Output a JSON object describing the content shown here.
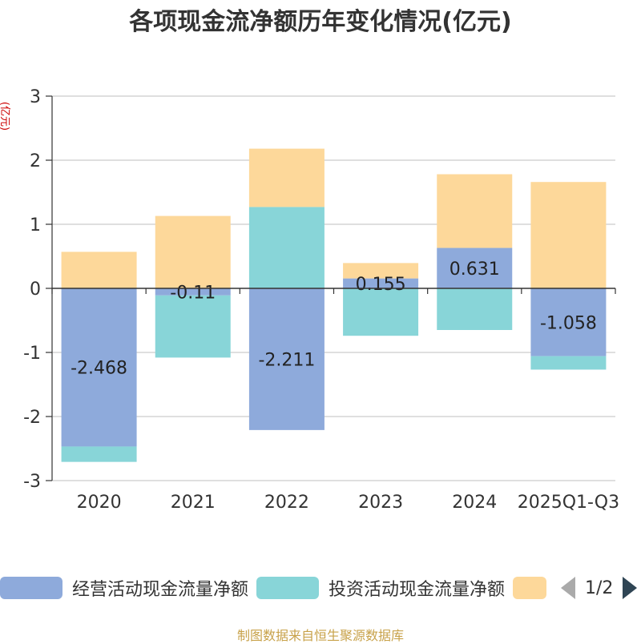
{
  "chart_data": {
    "type": "bar",
    "stacked": true,
    "title": "各项现金流净额历年变化情况(亿元)",
    "ylabel": "(亿元)",
    "categories": [
      "2020",
      "2021",
      "2022",
      "2023",
      "2024",
      "2025Q1-Q3"
    ],
    "ylim": [
      -3,
      3
    ],
    "yticks": [
      3,
      2,
      1,
      0,
      -1,
      -2,
      -3
    ],
    "grid": true,
    "series": [
      {
        "name": "经营活动现金流量净额",
        "color": "#8eaadb",
        "values": [
          -2.468,
          -0.11,
          -2.211,
          0.155,
          0.631,
          -1.058
        ],
        "labels": [
          "-2.468",
          "-0.11",
          "-2.211",
          "0.155",
          "0.631",
          "-1.058"
        ]
      },
      {
        "name": "投资活动现金流量净额",
        "color": "#88d5d8",
        "values": [
          -0.24,
          -0.97,
          1.27,
          -0.74,
          -0.65,
          -0.21
        ]
      },
      {
        "color": "#fdd89a",
        "values": [
          0.57,
          1.13,
          0.91,
          0.24,
          1.15,
          1.66
        ]
      }
    ]
  },
  "legend": {
    "page_text": "1/2"
  },
  "footer": {
    "source": "制图数据来自恒生聚源数据库"
  }
}
